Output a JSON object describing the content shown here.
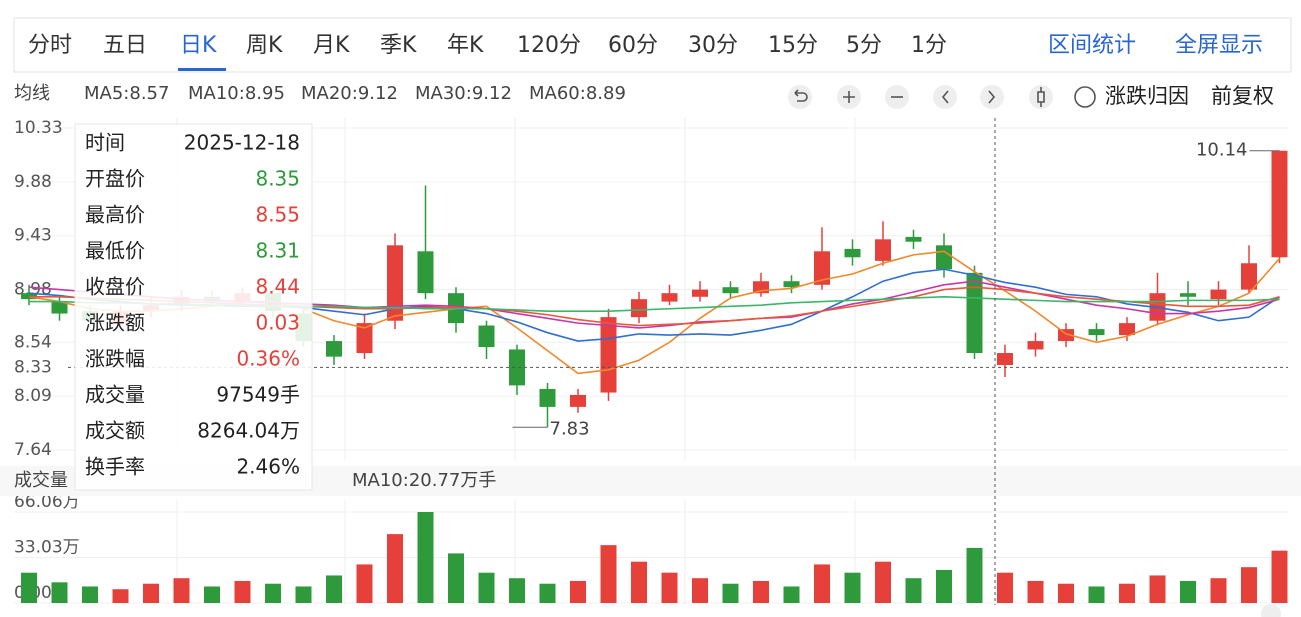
{
  "toolbar": {
    "tabs": [
      "分时",
      "五日",
      "日K",
      "周K",
      "月K",
      "季K",
      "年K",
      "120分",
      "60分",
      "30分",
      "15分",
      "5分",
      "1分"
    ],
    "active": 2,
    "actions": [
      "区间统计",
      "全屏显示"
    ],
    "options": [
      "涨跌归因",
      "前复权"
    ]
  },
  "chart_data": {
    "type": "candlestick",
    "ma_title": "均线",
    "open": [
      8.95,
      8.88,
      8.8,
      8.7,
      8.8,
      8.85,
      8.92,
      8.88,
      8.95,
      8.78,
      8.55,
      8.45,
      8.72,
      9.3,
      8.95,
      8.68,
      8.48,
      8.15,
      8.0,
      8.12,
      8.75,
      8.88,
      8.92,
      9.0,
      8.95,
      9.05,
      9.02,
      9.32,
      9.22,
      9.42,
      9.35,
      9.12,
      8.35,
      8.48,
      8.55,
      8.65,
      8.6,
      8.72,
      8.95,
      8.9,
      8.98,
      9.25
    ],
    "high": [
      9.02,
      8.93,
      8.85,
      8.85,
      8.92,
      8.98,
      8.97,
      9.0,
      8.98,
      8.82,
      8.6,
      8.78,
      9.45,
      9.85,
      9.0,
      8.72,
      8.52,
      8.2,
      8.15,
      8.82,
      8.96,
      9.02,
      9.05,
      9.05,
      9.12,
      9.1,
      9.5,
      9.4,
      9.55,
      9.48,
      9.45,
      9.18,
      8.52,
      8.62,
      8.7,
      8.7,
      8.75,
      9.12,
      9.05,
      9.05,
      9.35,
      10.14
    ],
    "low": [
      8.85,
      8.72,
      8.65,
      8.66,
      8.75,
      8.8,
      8.84,
      8.85,
      8.75,
      8.5,
      8.35,
      8.4,
      8.65,
      8.9,
      8.62,
      8.4,
      8.1,
      7.83,
      7.95,
      8.05,
      8.7,
      8.85,
      8.88,
      8.9,
      8.92,
      8.95,
      8.98,
      9.18,
      9.18,
      9.32,
      9.08,
      8.4,
      8.25,
      8.42,
      8.5,
      8.55,
      8.55,
      8.68,
      8.85,
      8.85,
      8.95,
      9.2
    ],
    "close": [
      8.9,
      8.78,
      8.72,
      8.8,
      8.85,
      8.92,
      8.88,
      8.95,
      8.8,
      8.55,
      8.42,
      8.7,
      9.35,
      8.95,
      8.7,
      8.5,
      8.18,
      8.0,
      8.1,
      8.75,
      8.9,
      8.95,
      8.98,
      8.95,
      9.05,
      9.0,
      9.3,
      9.25,
      9.4,
      9.38,
      9.15,
      8.45,
      8.45,
      8.55,
      8.65,
      8.6,
      8.7,
      8.95,
      8.92,
      8.98,
      9.2,
      10.14
    ],
    "volume": [
      22,
      15,
      12,
      10,
      14,
      18,
      12,
      16,
      14,
      12,
      20,
      28,
      50,
      66.06,
      36,
      22,
      18,
      14,
      16,
      42,
      30,
      22,
      18,
      14,
      16,
      12,
      28,
      22,
      30,
      18,
      24,
      40,
      22,
      16,
      14,
      12,
      14,
      20,
      16,
      18,
      26,
      38
    ],
    "series": [
      {
        "name": "MA5:8.57",
        "color": "#f0882c",
        "values": [
          8.92,
          8.88,
          8.82,
          8.8,
          8.8,
          8.82,
          8.84,
          8.88,
          8.88,
          8.82,
          8.72,
          8.66,
          8.76,
          8.79,
          8.82,
          8.84,
          8.66,
          8.47,
          8.28,
          8.31,
          8.39,
          8.54,
          8.74,
          8.91,
          8.97,
          8.99,
          9.06,
          9.11,
          9.2,
          9.27,
          9.3,
          9.13,
          8.97,
          8.8,
          8.61,
          8.54,
          8.59,
          8.69,
          8.77,
          8.84,
          8.95,
          9.24
        ]
      },
      {
        "name": "MA10:8.95",
        "color": "#2f6fcf",
        "values": [
          8.95,
          8.93,
          8.9,
          8.88,
          8.86,
          8.85,
          8.85,
          8.84,
          8.84,
          8.83,
          8.8,
          8.77,
          8.82,
          8.84,
          8.82,
          8.78,
          8.71,
          8.62,
          8.55,
          8.57,
          8.61,
          8.6,
          8.61,
          8.6,
          8.64,
          8.69,
          8.8,
          8.92,
          9.05,
          9.12,
          9.15,
          9.1,
          9.04,
          9.0,
          8.94,
          8.92,
          8.86,
          8.83,
          8.79,
          8.72,
          8.75,
          8.92
        ]
      },
      {
        "name": "MA20:9.12",
        "color": "#c936a8",
        "values": [
          9.0,
          8.98,
          8.96,
          8.94,
          8.92,
          8.9,
          8.89,
          8.88,
          8.87,
          8.86,
          8.85,
          8.83,
          8.84,
          8.85,
          8.84,
          8.82,
          8.78,
          8.74,
          8.7,
          8.68,
          8.66,
          8.68,
          8.71,
          8.72,
          8.74,
          8.75,
          8.8,
          8.86,
          8.9,
          8.96,
          9.02,
          9.05,
          9.0,
          8.95,
          8.9,
          8.85,
          8.82,
          8.78,
          8.78,
          8.8,
          8.83,
          8.9
        ]
      },
      {
        "name": "MA30:9.12",
        "color": "#e5583a",
        "values": [
          8.92,
          8.92,
          8.91,
          8.9,
          8.89,
          8.88,
          8.87,
          8.86,
          8.85,
          8.84,
          8.83,
          8.82,
          8.82,
          8.83,
          8.83,
          8.82,
          8.8,
          8.77,
          8.73,
          8.7,
          8.68,
          8.69,
          8.7,
          8.72,
          8.74,
          8.76,
          8.8,
          8.84,
          8.88,
          8.92,
          8.98,
          9.0,
          8.98,
          8.95,
          8.92,
          8.9,
          8.88,
          8.86,
          8.84,
          8.84,
          8.85,
          8.92
        ]
      },
      {
        "name": "MA60:8.89",
        "color": "#3db56a",
        "values": [
          8.88,
          8.88,
          8.87,
          8.87,
          8.86,
          8.86,
          8.85,
          8.85,
          8.84,
          8.84,
          8.84,
          8.83,
          8.83,
          8.82,
          8.82,
          8.82,
          8.81,
          8.8,
          8.8,
          8.8,
          8.81,
          8.82,
          8.83,
          8.84,
          8.85,
          8.87,
          8.88,
          8.89,
          8.9,
          8.91,
          8.92,
          8.91,
          8.9,
          8.89,
          8.88,
          8.88,
          8.88,
          8.88,
          8.89,
          8.89,
          8.89,
          8.9
        ]
      }
    ],
    "up_color": "#e5403a",
    "down_color": "#2e9a3c",
    "ylim": [
      7.64,
      10.33
    ],
    "yticks": [
      10.33,
      9.88,
      9.43,
      8.98,
      8.54,
      8.09,
      7.64
    ],
    "max_label": "10.14",
    "min_label": "7.83",
    "crosshair": {
      "value": 8.33,
      "label": "8.33"
    },
    "volume_title": "成交量",
    "volume_legend": [
      {
        "label": "MA10:20.77万手",
        "color": "#2f6fcf"
      }
    ],
    "volume_ylim": [
      0,
      66.06
    ],
    "volume_yticks": [
      {
        "value": 66.06,
        "label": "66.06万"
      },
      {
        "value": 33.03,
        "label": "33.03万"
      },
      {
        "value": 0,
        "label": "0.00"
      }
    ],
    "grid": true,
    "tooltip": [
      {
        "label": "时间",
        "value": "2025-12-18",
        "color": "#222"
      },
      {
        "label": "开盘价",
        "value": "8.35",
        "color": "#2e9a3c"
      },
      {
        "label": "最高价",
        "value": "8.55",
        "color": "#e5403a"
      },
      {
        "label": "最低价",
        "value": "8.31",
        "color": "#2e9a3c"
      },
      {
        "label": "收盘价",
        "value": "8.44",
        "color": "#e5403a"
      },
      {
        "label": "涨跌额",
        "value": "0.03",
        "color": "#e5403a"
      },
      {
        "label": "涨跌幅",
        "value": "0.36%",
        "color": "#e5403a"
      },
      {
        "label": "成交量",
        "value": "97549手",
        "color": "#222"
      },
      {
        "label": "成交额",
        "value": "8264.04万",
        "color": "#222"
      },
      {
        "label": "换手率",
        "value": "2.46%",
        "color": "#222"
      }
    ]
  }
}
